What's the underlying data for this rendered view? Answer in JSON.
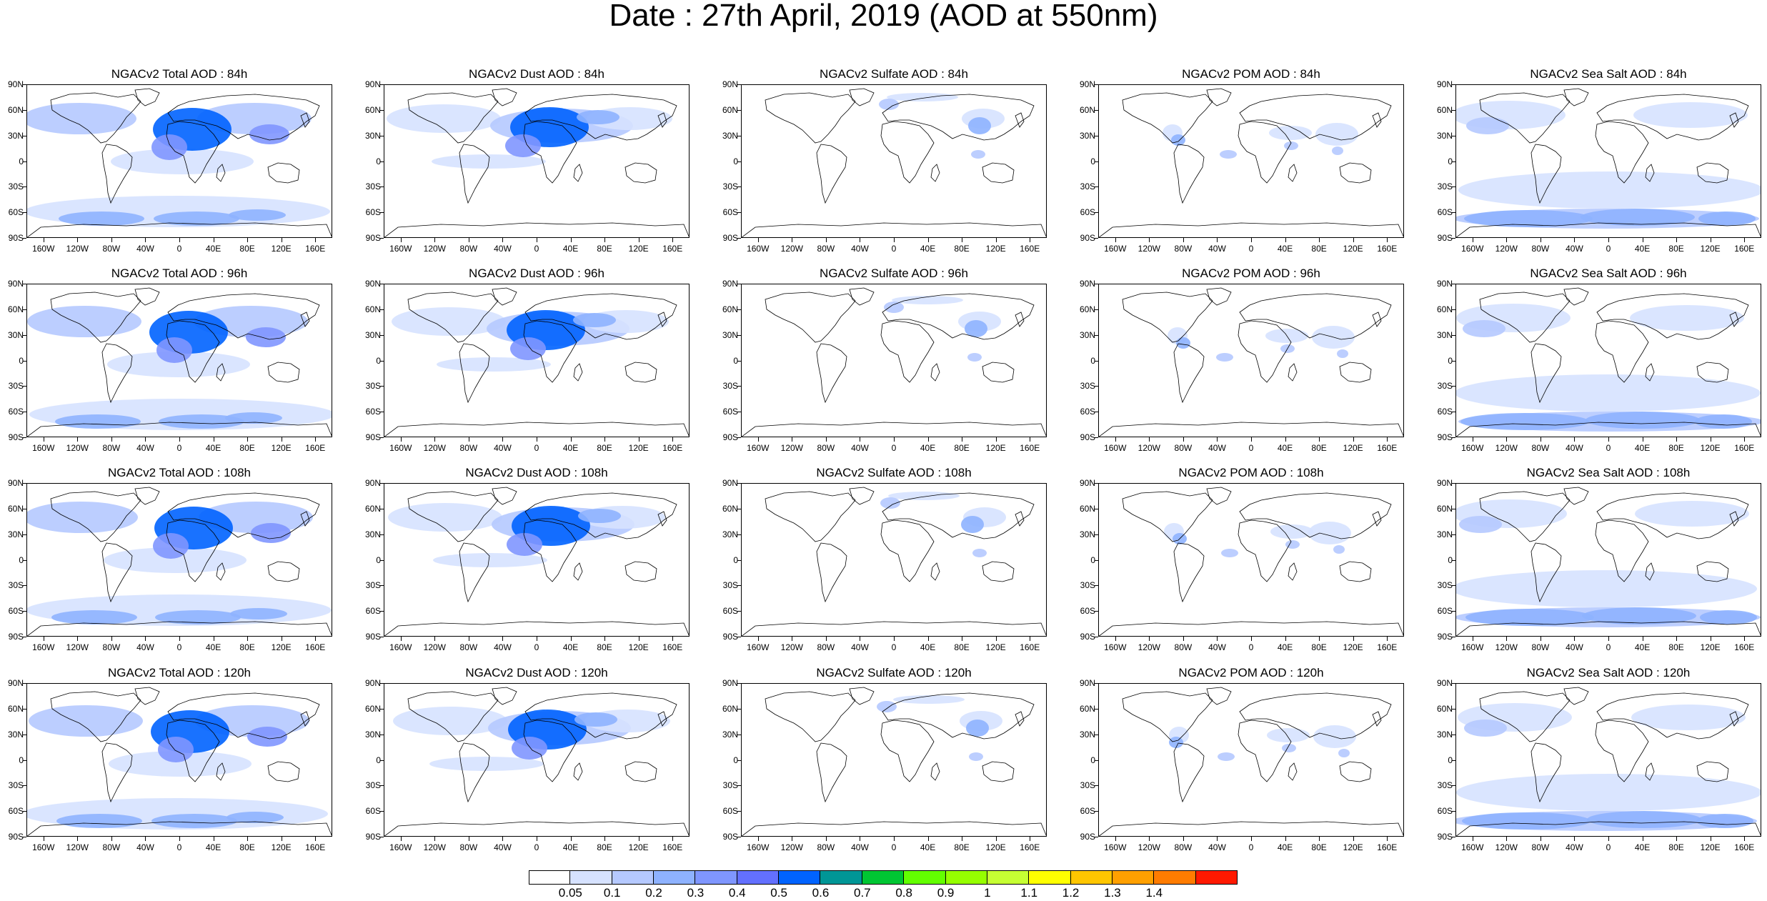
{
  "title": "Date : 27th April, 2019 (AOD at 550nm)",
  "y_labels": [
    "90N",
    "60N",
    "30N",
    "0",
    "30S",
    "60S",
    "90S"
  ],
  "x_labels": [
    "160W",
    "120W",
    "80W",
    "40W",
    "0",
    "40E",
    "80E",
    "120E",
    "160E"
  ],
  "species": [
    {
      "key": "total",
      "name": "Total"
    },
    {
      "key": "dust",
      "name": "Dust"
    },
    {
      "key": "sulfate",
      "name": "Sulfate"
    },
    {
      "key": "pom",
      "name": "POM"
    },
    {
      "key": "seasalt",
      "name": "Sea Salt"
    }
  ],
  "panels": [
    [
      "NGACv2 Total AOD : 84h",
      "NGACv2 Dust AOD : 84h",
      "NGACv2 Sulfate AOD : 84h",
      "NGACv2 POM AOD : 84h",
      "NGACv2 Sea Salt AOD : 84h"
    ],
    [
      "NGACv2 Total AOD : 96h",
      "NGACv2 Dust AOD : 96h",
      "NGACv2 Sulfate AOD : 96h",
      "NGACv2 POM AOD : 96h",
      "NGACv2 Sea Salt AOD : 96h"
    ],
    [
      "NGACv2 Total AOD : 108h",
      "NGACv2 Dust AOD : 108h",
      "NGACv2 Sulfate AOD : 108h",
      "NGACv2 POM AOD : 108h",
      "NGACv2 Sea Salt AOD : 108h"
    ],
    [
      "NGACv2 Total AOD : 120h",
      "NGACv2 Dust AOD : 120h",
      "NGACv2 Sulfate AOD : 120h",
      "NGACv2 POM AOD : 120h",
      "NGACv2 Sea Salt  AOD : 120h"
    ]
  ],
  "colorbar": {
    "labels": [
      "0.05",
      "0.1",
      "0.2",
      "0.3",
      "0.4",
      "0.5",
      "0.6",
      "0.7",
      "0.8",
      "0.9",
      "1",
      "1.1",
      "1.2",
      "1.3",
      "1.4"
    ],
    "colors": [
      "#ffffff",
      "#d6e2ff",
      "#b5c9ff",
      "#8eb2ff",
      "#7f96ff",
      "#6370ff",
      "#0063ff",
      "#009696",
      "#00c633",
      "#63ff00",
      "#96ff00",
      "#c6ff33",
      "#ffff00",
      "#ffc600",
      "#ffa000",
      "#ff7c00",
      "#ff1900"
    ]
  }
}
